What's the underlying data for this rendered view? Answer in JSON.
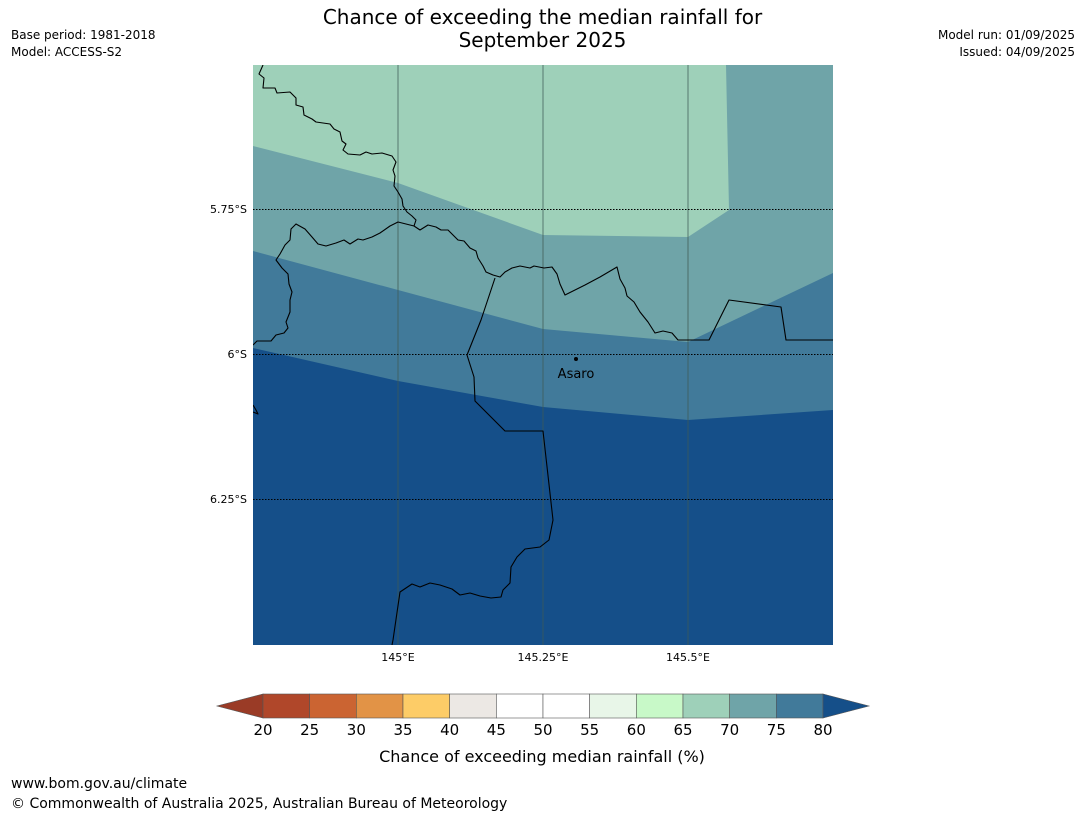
{
  "title_line1": "Chance of exceeding the median rainfall for",
  "title_line2": "September 2025",
  "meta_left": {
    "base_period": "Base period: 1981-2018",
    "model": "Model: ACCESS-S2"
  },
  "meta_right": {
    "model_run": "Model run: 01/09/2025",
    "issued": "Issued: 04/09/2025"
  },
  "map": {
    "lon_labels": [
      "145°E",
      "145.25°E",
      "145.5°E"
    ],
    "lat_labels": [
      "5.75°S",
      "6°S",
      "6.25°S"
    ],
    "place_label": "Asaro"
  },
  "colorbar": {
    "label": "Chance of exceeding median rainfall (%)",
    "ticks": [
      "20",
      "25",
      "30",
      "35",
      "40",
      "45",
      "50",
      "55",
      "60",
      "65",
      "70",
      "75",
      "80"
    ],
    "colors": [
      "#b0472a",
      "#cb6432",
      "#e29346",
      "#fdcc67",
      "#ece8e4",
      "#ffffff",
      "#ffffff",
      "#e8f6e8",
      "#c8f9c8",
      "#9ed0b9",
      "#6fa4a8",
      "#417a9a"
    ],
    "under_color": "#9a3b26",
    "over_color": "#154f89"
  },
  "colors": {
    "band_70": "#9ed0b9",
    "band_75": "#6fa4a8",
    "band_80": "#417a9a",
    "band_over80": "#154f89"
  },
  "footer": {
    "url": "www.bom.gov.au/climate",
    "copyright": "© Commonwealth of Australia 2025, Australian Bureau of Meteorology"
  }
}
